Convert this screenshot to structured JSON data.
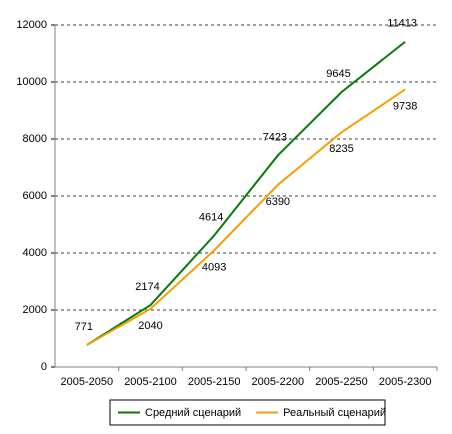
{
  "chart_data": {
    "type": "line",
    "categories": [
      "2005-2050",
      "2005-2100",
      "2005-2150",
      "2005-2200",
      "2005-2250",
      "2005-2300"
    ],
    "series": [
      {
        "name": "Средний сценарий",
        "color": "#0a7a0a",
        "values": [
          771,
          2174,
          4614,
          7423,
          9645,
          11413
        ],
        "value_labels": [
          "771",
          "2174",
          "4614",
          "7423",
          "9645",
          "11413"
        ]
      },
      {
        "name": "Реальный сценарий",
        "color": "#f5a000",
        "values": [
          771,
          2040,
          4093,
          6390,
          8235,
          9738
        ],
        "value_labels": [
          null,
          "2040",
          "4093",
          "6390",
          "8235",
          "9738"
        ]
      }
    ],
    "ylim": [
      0,
      12000
    ],
    "yticks": [
      0,
      2000,
      4000,
      6000,
      8000,
      10000,
      12000
    ],
    "grid": true,
    "legend": "bottom"
  }
}
